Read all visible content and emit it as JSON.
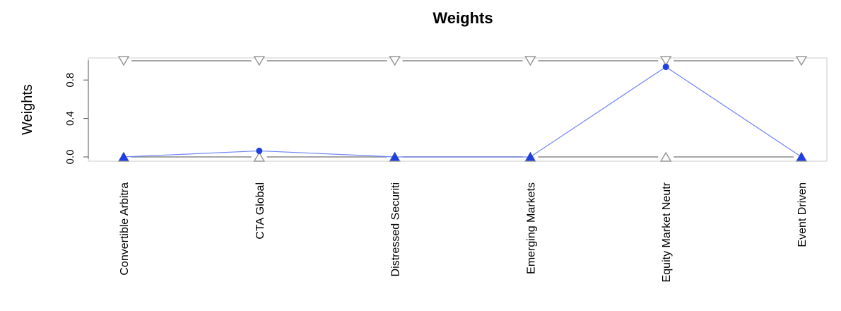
{
  "chart_data": {
    "type": "line",
    "title": "Weights",
    "ylabel": "Weights",
    "xlabel": "",
    "categories": [
      "Convertible Arbitra",
      "CTA Global",
      "Distressed Securiti",
      "Emerging Markets",
      "Equity Market Neutr",
      "Event Driven"
    ],
    "ylim": [
      0,
      1
    ],
    "yticks": [
      "0.0",
      "0.4",
      "0.8"
    ],
    "ytick_values": [
      0,
      0.4,
      0.8
    ],
    "grid": false,
    "series": [
      {
        "role": "weights",
        "values": [
          0.0,
          0.063,
          0.0,
          0.0,
          0.937,
          0.0
        ],
        "color": "#1f3fe0",
        "line_color": "#6f84f5"
      },
      {
        "role": "upper-bound",
        "values": [
          1,
          1,
          1,
          1,
          1,
          1
        ],
        "color": "#999999"
      },
      {
        "role": "lower-bound",
        "values": [
          0,
          0,
          0,
          0,
          0,
          0
        ],
        "color": "#999999"
      }
    ]
  }
}
